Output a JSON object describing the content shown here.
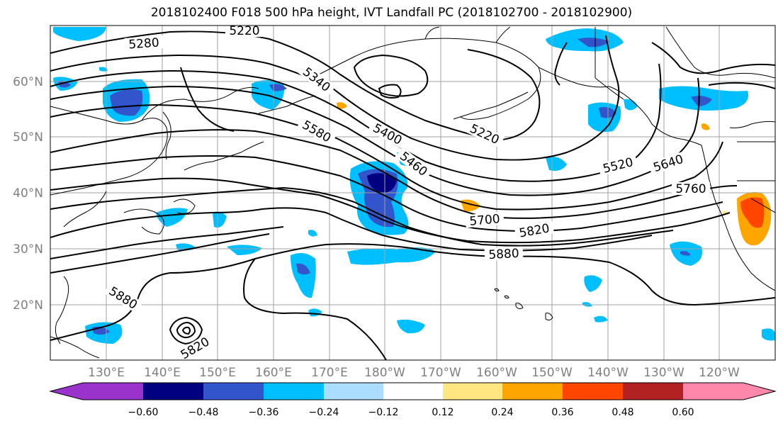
{
  "title": "2018102400 F018 500 hPa height, IVT Landfall PC (2018102700 - 2018102900)",
  "lat_labels": [
    "20°N",
    "30°N",
    "40°N",
    "50°N",
    "60°N"
  ],
  "lon_labels": [
    "130°E",
    "140°E",
    "150°E",
    "160°E",
    "170°E",
    "180°W",
    "170°W",
    "160°W",
    "150°W",
    "140°W",
    "130°W",
    "120°W"
  ],
  "contour_labels": [
    "5220",
    "5280",
    "5340",
    "5580",
    "5400",
    "5460",
    "5220",
    "5520",
    "5640",
    "5760",
    "5700",
    "5820",
    "5880",
    "5880",
    "5820"
  ],
  "colorbar": {
    "ticks": [
      "−0.60",
      "−0.48",
      "−0.36",
      "−0.24",
      "−0.12",
      "0.12",
      "0.24",
      "0.36",
      "0.48",
      "0.60"
    ],
    "colors": [
      "#9933cc",
      "#000080",
      "#3355cc",
      "#00bfff",
      "#aaddff",
      "#ffffff",
      "#ffe680",
      "#ffa500",
      "#ff4500",
      "#b22222",
      "#ff88aa"
    ]
  },
  "colors": {
    "blue_shade": "#00bfff",
    "dark_blue_shade": "#3355cc",
    "navy_shade": "#000080",
    "light_blue_shade": "#aaddff",
    "orange_shade": "#ffa500",
    "red_shade": "#ff4500",
    "yellow_shade": "#ffe680"
  }
}
